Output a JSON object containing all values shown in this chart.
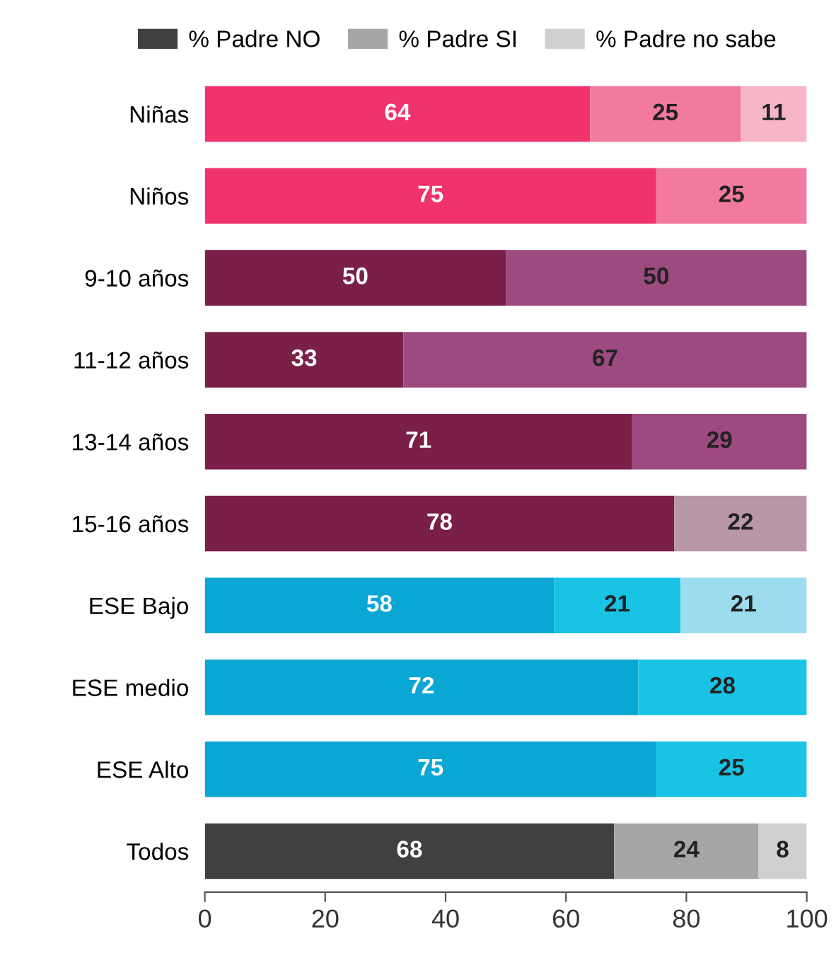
{
  "chart_data": {
    "type": "bar",
    "orientation": "horizontal",
    "stacked": true,
    "data_labels": true,
    "legend": "top",
    "grid": false,
    "categories": [
      "Niñas",
      "Niños",
      "9-10 años",
      "11-12 años",
      "13-14 años",
      "15-16 años",
      "ESE Bajo",
      "ESE medio",
      "ESE Alto",
      "Todos"
    ],
    "xlim": [
      0,
      100
    ],
    "xticks": [
      0,
      20,
      40,
      60,
      80,
      100
    ],
    "series": [
      {
        "name": "% Padre NO",
        "color": "#404040",
        "values": [
          64,
          75,
          50,
          33,
          71,
          78,
          58,
          72,
          75,
          68
        ],
        "colors": [
          "#f0336b",
          "#f0336b",
          "#7a1f48",
          "#7a1f48",
          "#7a1f48",
          "#7a1f48",
          "#0aa6d4",
          "#0aa6d4",
          "#0aa6d4",
          "#404040"
        ]
      },
      {
        "name": "% Padre SI",
        "color": "#a6a6a6",
        "values": [
          25,
          25,
          50,
          67,
          29,
          null,
          21,
          28,
          25,
          24
        ],
        "colors": [
          "#f27a9f",
          "#f27a9f",
          "#9c4a7f",
          "#9c4a7f",
          "#9c4a7f",
          null,
          "#18c3e6",
          "#18c3e6",
          "#18c3e6",
          "#a6a6a6"
        ]
      },
      {
        "name": "% Padre no sabe",
        "color": "#d0d0d0",
        "values": [
          11,
          null,
          null,
          null,
          null,
          22,
          21,
          null,
          null,
          8
        ],
        "colors": [
          "#f6b6c8",
          null,
          null,
          null,
          null,
          "#b897a8",
          "#9ddcef",
          null,
          null,
          "#d0d0d0"
        ]
      }
    ]
  }
}
